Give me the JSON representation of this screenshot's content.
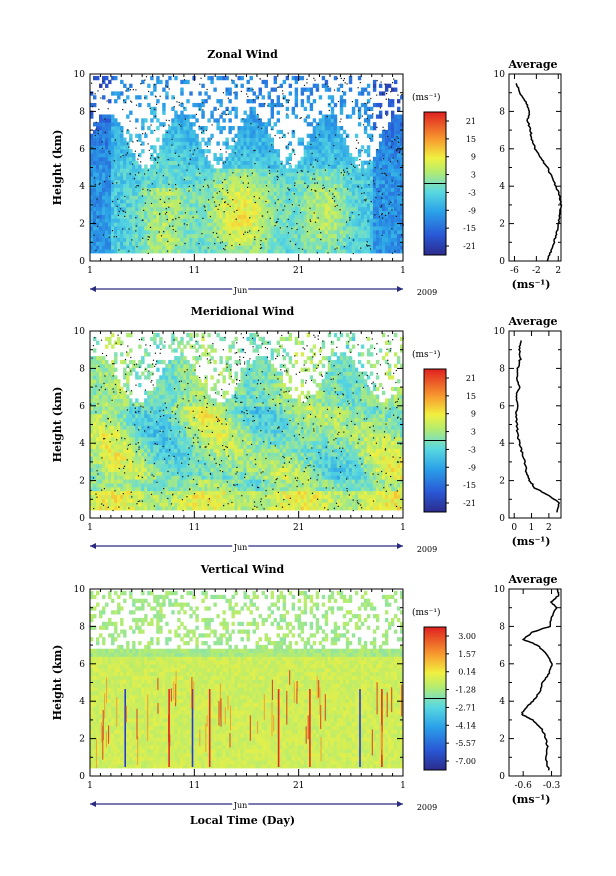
{
  "chart_data": [
    {
      "type": "heatmap",
      "title": "Zonal Wind",
      "ylabel": "Height (km)",
      "xlabel": "Jun",
      "year_label": "2009",
      "x_ticks": [
        "1",
        "11",
        "21",
        "1"
      ],
      "y_ticks": [
        "0",
        "2",
        "4",
        "6",
        "8",
        "10"
      ],
      "ylim": [
        0,
        10
      ],
      "colorbar": {
        "unit": "(ms⁻¹)",
        "labels": [
          "21",
          "15",
          "9",
          "3",
          "-3",
          "-9",
          "-15",
          "-21"
        ],
        "range": [
          -24,
          24
        ]
      },
      "profile": {
        "title": "Average",
        "xlabel": "(ms⁻¹)",
        "x_ticks": [
          "-6",
          "-2",
          "2"
        ],
        "xlim": [
          -7,
          2.5
        ],
        "y_ticks": [
          "0",
          "2",
          "4",
          "6",
          "8",
          "10"
        ],
        "heights": [
          0,
          0.5,
          1,
          1.5,
          2,
          2.5,
          3,
          3.5,
          4,
          4.5,
          5,
          5.5,
          6,
          6.5,
          7,
          7.5,
          8,
          8.5,
          9,
          9.5
        ],
        "values": [
          0,
          0.6,
          1.2,
          1.7,
          2.0,
          2.3,
          2.5,
          2.2,
          1.6,
          0.8,
          0.0,
          -1.2,
          -2.2,
          -2.8,
          -3.1,
          -3.6,
          -3.2,
          -3.9,
          -5.0,
          -5.7
        ]
      }
    },
    {
      "type": "heatmap",
      "title": "Meridional Wind",
      "ylabel": "Height (km)",
      "xlabel": "Jun",
      "year_label": "2009",
      "x_ticks": [
        "1",
        "11",
        "21",
        "1"
      ],
      "y_ticks": [
        "0",
        "2",
        "4",
        "6",
        "8",
        "10"
      ],
      "ylim": [
        0,
        10
      ],
      "colorbar": {
        "unit": "(ms⁻¹)",
        "labels": [
          "21",
          "15",
          "9",
          "3",
          "-3",
          "-9",
          "-15",
          "-21"
        ],
        "range": [
          -24,
          24
        ]
      },
      "profile": {
        "title": "Average",
        "xlabel": "(ms⁻¹)",
        "x_ticks": [
          "0",
          "1",
          "2"
        ],
        "xlim": [
          -0.3,
          2.7
        ],
        "y_ticks": [
          "0",
          "2",
          "4",
          "6",
          "8",
          "10"
        ],
        "heights": [
          0.3,
          0.8,
          1.2,
          1.6,
          2,
          2.5,
          3,
          3.5,
          4,
          4.5,
          5,
          5.5,
          6,
          6.5,
          7,
          7.5,
          8,
          8.5,
          9,
          9.5
        ],
        "values": [
          2.5,
          2.6,
          2.0,
          1.2,
          0.9,
          0.7,
          0.6,
          0.45,
          0.3,
          0.2,
          0.15,
          0.1,
          0.2,
          0.1,
          0.3,
          0.15,
          0.2,
          0.35,
          0.3,
          0.4
        ]
      }
    },
    {
      "type": "heatmap",
      "title": "Vertical Wind",
      "ylabel": "Height (km)",
      "xlabel": "Jun",
      "year_label": "2009",
      "axis_title": "Local Time (Day)",
      "x_ticks": [
        "1",
        "11",
        "21",
        "1"
      ],
      "y_ticks": [
        "0",
        "2",
        "4",
        "6",
        "8",
        "10"
      ],
      "ylim": [
        0,
        10
      ],
      "colorbar": {
        "unit": "(ms⁻¹)",
        "labels": [
          "3.00",
          "1.57",
          "0.14",
          "-1.28",
          "-2.71",
          "-4.14",
          "-5.57",
          "-7.00"
        ],
        "range": [
          -7.7,
          3.7
        ]
      },
      "profile": {
        "title": "Average",
        "xlabel": "(ms⁻¹)",
        "x_ticks": [
          "-0.6",
          "-0.3"
        ],
        "xlim": [
          -0.75,
          -0.2
        ],
        "y_ticks": [
          "0",
          "2",
          "4",
          "6",
          "8",
          "10"
        ],
        "heights": [
          0.3,
          1,
          1.5,
          2,
          2.5,
          3,
          3.3,
          3.6,
          4,
          4.5,
          5,
          5.5,
          6,
          6.5,
          7,
          7.3,
          7.7,
          8,
          8.5,
          9,
          9.3,
          9.7,
          10
        ],
        "values": [
          -0.33,
          -0.36,
          -0.34,
          -0.36,
          -0.4,
          -0.5,
          -0.62,
          -0.58,
          -0.5,
          -0.42,
          -0.4,
          -0.32,
          -0.3,
          -0.35,
          -0.45,
          -0.6,
          -0.5,
          -0.32,
          -0.3,
          -0.25,
          -0.3,
          -0.22,
          -0.24
        ]
      }
    }
  ]
}
